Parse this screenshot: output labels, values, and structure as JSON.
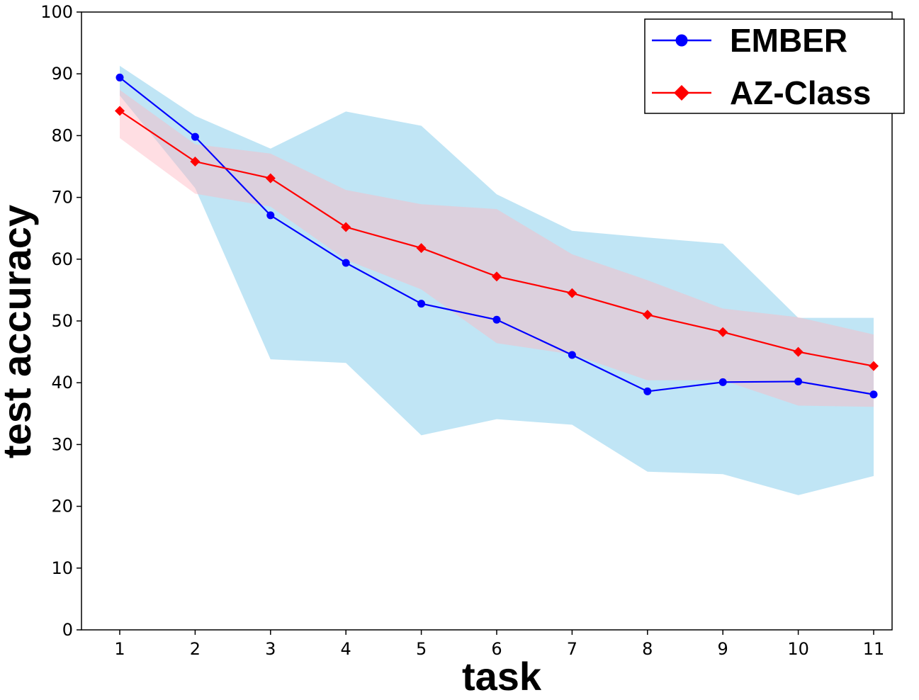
{
  "chart_data": {
    "type": "line",
    "title": "",
    "xlabel": "task",
    "ylabel": "test accuracy",
    "x": [
      1,
      2,
      3,
      4,
      5,
      6,
      7,
      8,
      9,
      10,
      11
    ],
    "xlim": [
      0.5,
      11.2
    ],
    "ylim": [
      0,
      100
    ],
    "yticks": [
      0,
      10,
      20,
      30,
      40,
      50,
      60,
      70,
      80,
      90,
      100
    ],
    "grid": false,
    "legend_position": "top-right",
    "series": [
      {
        "name": "EMBER",
        "color": "#0000ff",
        "marker": "circle",
        "values": [
          89.4,
          79.8,
          67.1,
          59.4,
          52.8,
          50.2,
          44.5,
          38.6,
          40.1,
          40.2,
          38.1
        ],
        "band_lower": [
          86.5,
          71.5,
          43.8,
          43.2,
          31.5,
          34.1,
          33.2,
          25.6,
          25.2,
          21.8,
          24.9
        ],
        "band_upper": [
          91.3,
          83.2,
          77.9,
          83.9,
          81.6,
          70.5,
          64.6,
          63.5,
          62.5,
          50.5,
          50.5
        ],
        "band_color": "#87ceeb"
      },
      {
        "name": "AZ-Class",
        "color": "#ff0000",
        "marker": "diamond",
        "values": [
          84.0,
          75.8,
          73.1,
          65.2,
          61.8,
          57.2,
          54.5,
          51.0,
          48.2,
          45.0,
          42.7
        ],
        "band_lower": [
          79.6,
          70.6,
          68.5,
          59.9,
          55.1,
          46.4,
          44.6,
          40.4,
          40.4,
          36.3,
          36.1
        ],
        "band_upper": [
          87.4,
          78.6,
          77.1,
          71.2,
          68.9,
          68.1,
          60.8,
          56.6,
          52.0,
          50.6,
          47.8
        ],
        "band_color": "#ffb6c1"
      }
    ]
  }
}
